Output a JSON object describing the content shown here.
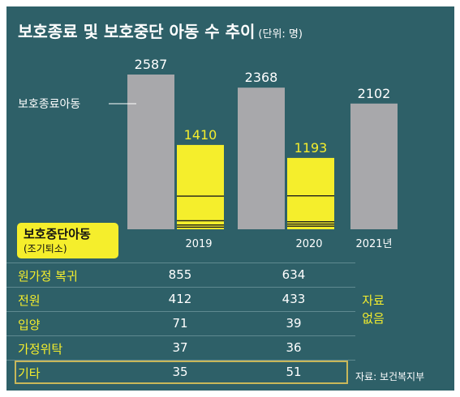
{
  "title": "보호종료 및 보호중단 아동 수 추이",
  "unit": "(단위: 명)",
  "chart_data": {
    "type": "bar",
    "categories": [
      "2019",
      "2020",
      "2021년"
    ],
    "series": [
      {
        "name": "보호종료아동",
        "values": [
          2587,
          2368,
          2102
        ],
        "color": "#a8a8ab"
      },
      {
        "name": "보호중단아동",
        "values": [
          1410,
          1193,
          null
        ],
        "color": "#f5ee2c"
      }
    ],
    "ylim": [
      0,
      2587
    ],
    "annotation": "보호종료아동"
  },
  "breakdown": {
    "label": "보호중단아동",
    "sublabel": "(조기퇴소)",
    "rows": [
      {
        "label": "원가정 복귀",
        "v2019": "855",
        "v2020": "634"
      },
      {
        "label": "전원",
        "v2019": "412",
        "v2020": "433"
      },
      {
        "label": "입양",
        "v2019": "71",
        "v2020": "39"
      },
      {
        "label": "가정위탁",
        "v2019": "37",
        "v2020": "36"
      },
      {
        "label": "기타",
        "v2019": "35",
        "v2020": "51"
      }
    ],
    "no_data": [
      "자료",
      "없음"
    ]
  },
  "source": "자료: 보건복지부"
}
